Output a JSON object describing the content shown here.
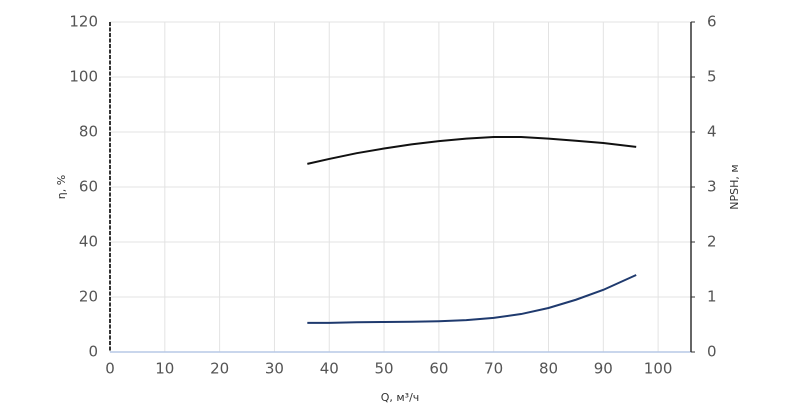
{
  "chart_data": {
    "type": "line",
    "xlabel": "Q, м³/ч",
    "ylabel": "η, %",
    "y2label": "NPSH, м",
    "xlim": [
      0,
      106
    ],
    "xticks": [
      0,
      10,
      20,
      30,
      40,
      50,
      60,
      70,
      80,
      90,
      100
    ],
    "ylim": [
      0,
      120
    ],
    "yticks": [
      0,
      20,
      40,
      60,
      80,
      100,
      120
    ],
    "y2lim": [
      0,
      6
    ],
    "y2ticks": [
      0,
      1,
      2,
      3,
      4,
      5,
      6
    ],
    "grid": true,
    "series": [
      {
        "color": "#111111",
        "axis": "y",
        "x": [
          36,
          40,
          45,
          50,
          55,
          60,
          65,
          70,
          75,
          80,
          85,
          90,
          96
        ],
        "values": [
          68.4,
          70.2,
          72.3,
          74.0,
          75.5,
          76.7,
          77.6,
          78.2,
          78.2,
          77.6,
          76.8,
          76.0,
          74.6
        ]
      },
      {
        "color": "#1f3a6e",
        "axis": "y2",
        "x": [
          36,
          40,
          45,
          50,
          55,
          60,
          65,
          70,
          75,
          80,
          85,
          90,
          96
        ],
        "values": [
          0.53,
          0.53,
          0.54,
          0.545,
          0.55,
          0.56,
          0.58,
          0.62,
          0.69,
          0.8,
          0.95,
          1.13,
          1.4
        ]
      }
    ]
  }
}
